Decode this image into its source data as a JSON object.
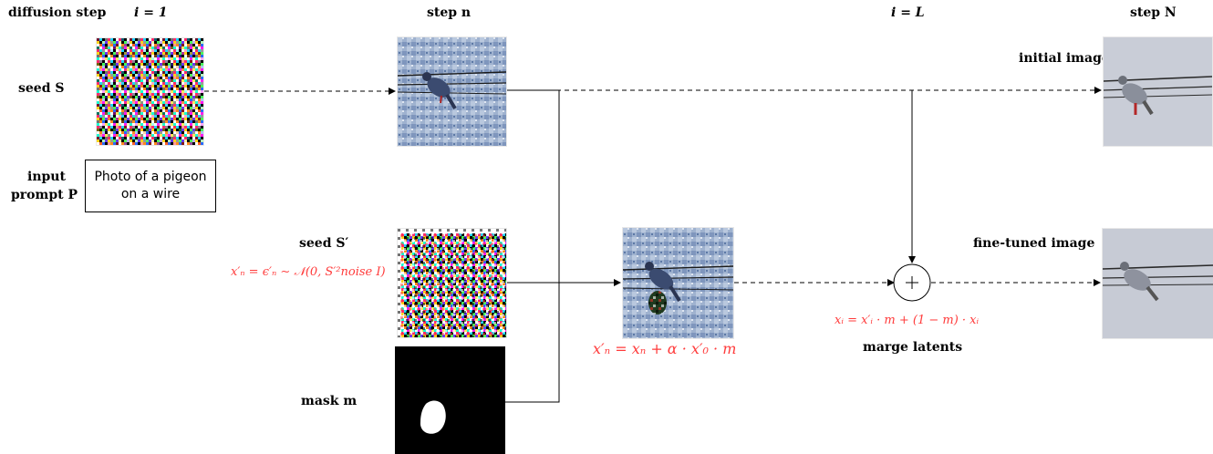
{
  "headers": {
    "diffusion_step": "diffusion step",
    "i_eq_1": "i = 1",
    "step_n": "step n",
    "i_eq_L": "i = L",
    "step_N": "step N"
  },
  "labels": {
    "seed_S": "seed S",
    "input_prompt_line1": "input",
    "input_prompt_line2": "prompt P",
    "prompt_text": "Photo of a pigeon on a wire",
    "seed_S_prime": "seed S′",
    "mask_m": "mask m",
    "initial_image": "initial image",
    "fine_tuned_image": "fine-tuned image",
    "merge_latents": "marge latents"
  },
  "equations": {
    "noise_init": "x′ₙ = ϵ′ₙ ∼ 𝒩(0, S′²noise I)",
    "blend_step": "x′ₙ = xₙ + α · x′₀ · m",
    "merge": "xᵢ = x′ᵢ · m + (1 − m) · xᵢ"
  },
  "colors": {
    "equation": "#ff3b3b",
    "line": "#000000"
  },
  "icons": {
    "merge_node": "plus-circle-icon"
  }
}
